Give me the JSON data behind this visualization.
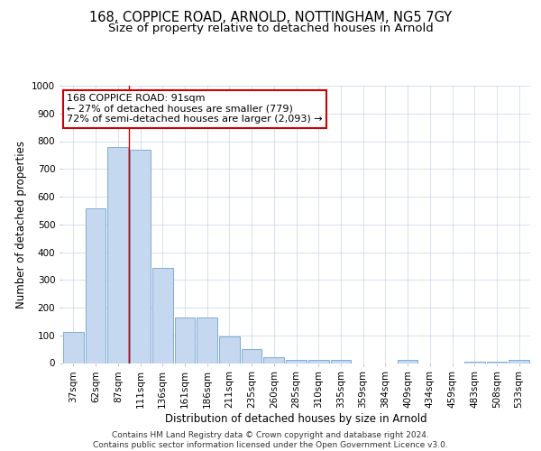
{
  "title_line1": "168, COPPICE ROAD, ARNOLD, NOTTINGHAM, NG5 7GY",
  "title_line2": "Size of property relative to detached houses in Arnold",
  "xlabel": "Distribution of detached houses by size in Arnold",
  "ylabel": "Number of detached properties",
  "categories": [
    "37sqm",
    "62sqm",
    "87sqm",
    "111sqm",
    "136sqm",
    "161sqm",
    "186sqm",
    "211sqm",
    "235sqm",
    "260sqm",
    "285sqm",
    "310sqm",
    "335sqm",
    "359sqm",
    "384sqm",
    "409sqm",
    "434sqm",
    "459sqm",
    "483sqm",
    "508sqm",
    "533sqm"
  ],
  "values": [
    112,
    557,
    779,
    769,
    343,
    163,
    163,
    96,
    50,
    20,
    13,
    10,
    10,
    0,
    0,
    10,
    0,
    0,
    5,
    5,
    10
  ],
  "bar_color": "#c5d8f0",
  "bar_edge_color": "#7eadd4",
  "grid_color": "#c8d4e4",
  "vline_color": "#cc0000",
  "annotation_text": "168 COPPICE ROAD: 91sqm\n← 27% of detached houses are smaller (779)\n72% of semi-detached houses are larger (2,093) →",
  "annotation_box_facecolor": "#ffffff",
  "annotation_box_edgecolor": "#cc0000",
  "ylim": [
    0,
    1000
  ],
  "yticks": [
    0,
    100,
    200,
    300,
    400,
    500,
    600,
    700,
    800,
    900,
    1000
  ],
  "footer_text": "Contains HM Land Registry data © Crown copyright and database right 2024.\nContains public sector information licensed under the Open Government Licence v3.0.",
  "title_fontsize": 10.5,
  "subtitle_fontsize": 9.5,
  "tick_fontsize": 7.5,
  "label_fontsize": 8.5,
  "annotation_fontsize": 8.0,
  "footer_fontsize": 6.5
}
